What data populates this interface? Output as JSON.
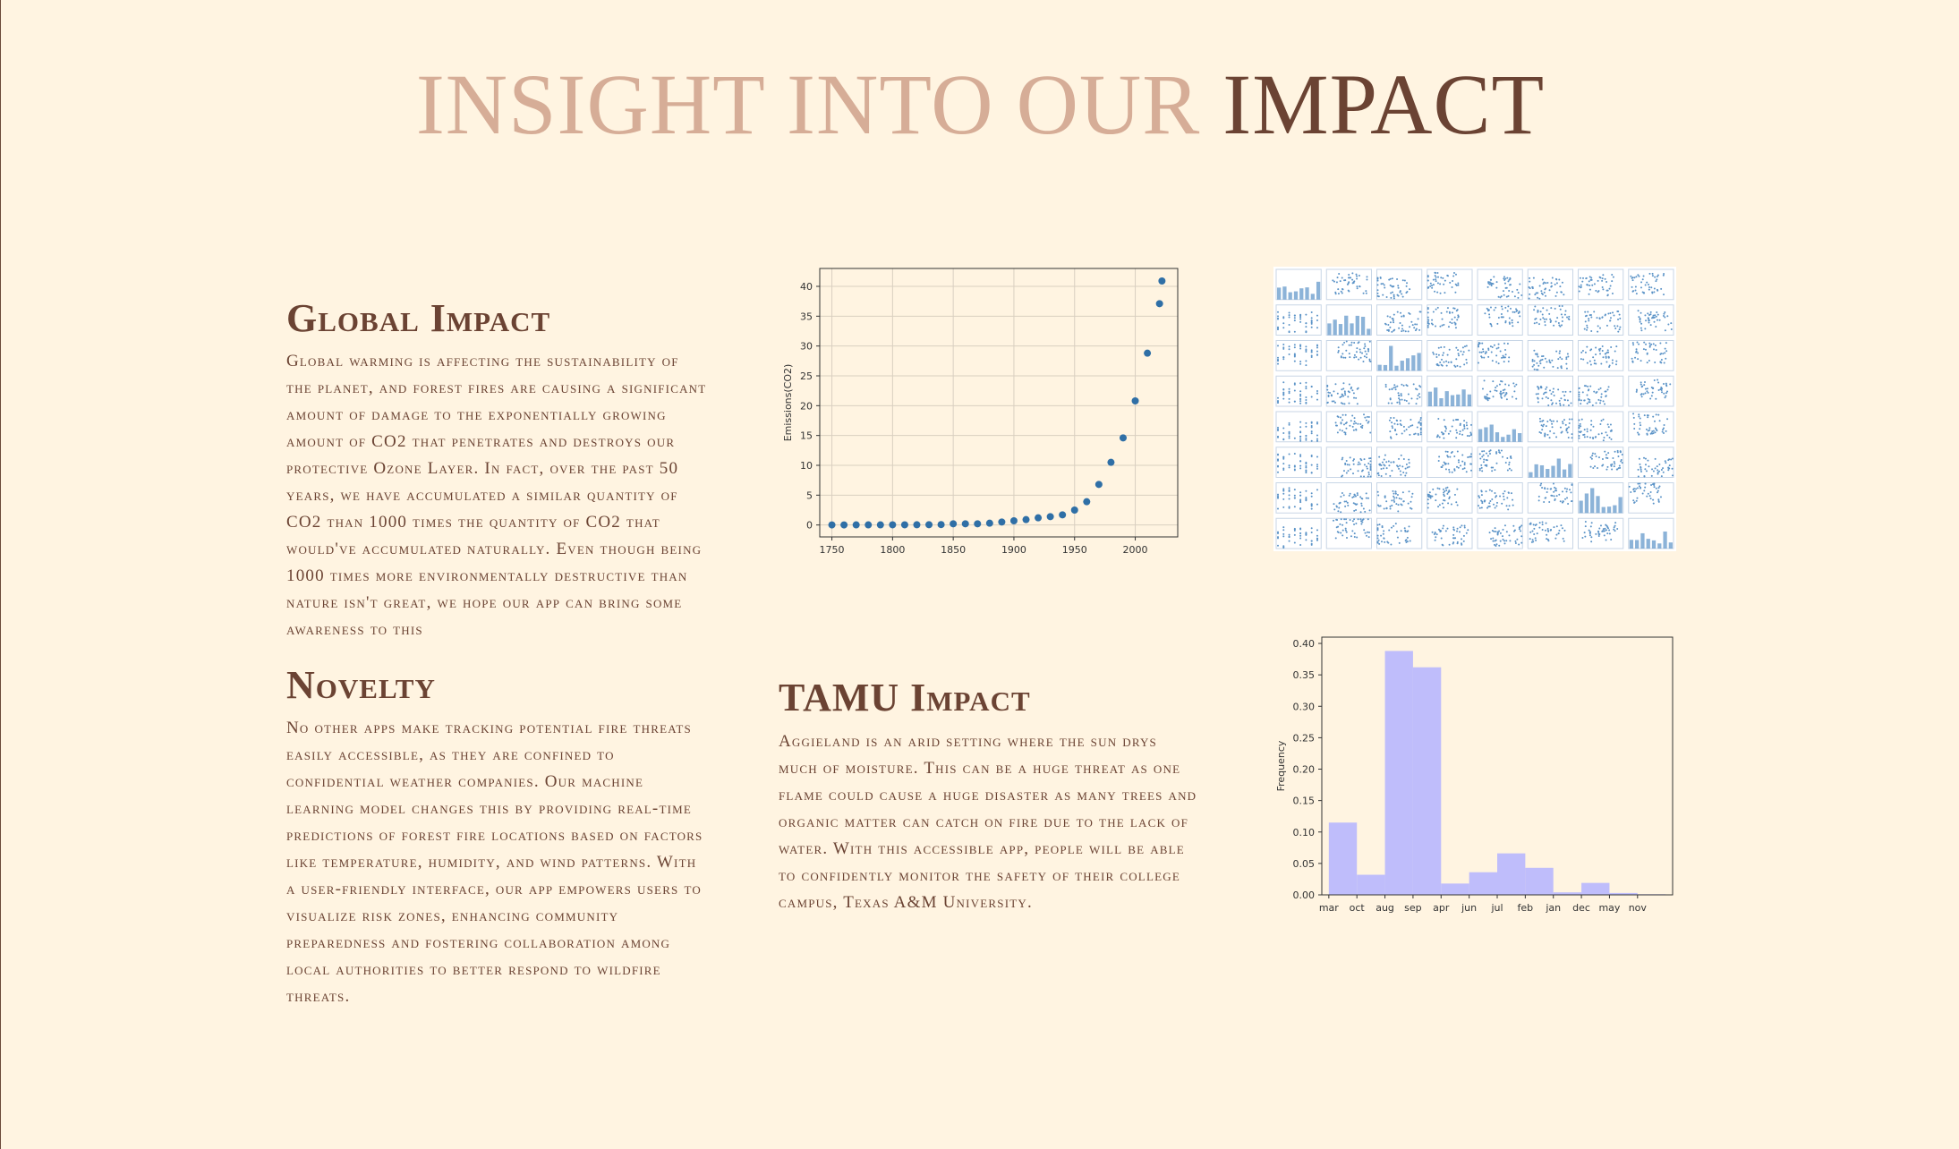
{
  "header": {
    "title_light": "INSIGHT INTO OUR",
    "title_dark": "IMPACT"
  },
  "sections": {
    "global": {
      "heading": "Global Impact",
      "body": "Global warming is affecting the sustainability of the planet, and forest fires are causing a significant amount of damage to the exponentially growing amount of CO2 that penetrates and destroys our protective Ozone Layer. In fact, over the past 50 years, we have accumulated a similar quantity of CO2 than 1000 times the quantity of CO2 that would've accumulated naturally. Even though being 1000 times more environmentally destructive than nature isn't great, we hope our app can bring some awareness to this"
    },
    "novelty": {
      "heading": "Novelty",
      "body": "No other apps make tracking potential fire threats easily accessible, as they are confined to confidential weather companies. Our machine learning model changes this by providing real-time predictions of forest fire locations based on factors like temperature, humidity, and wind patterns. With a user-friendly interface, our app empowers users to visualize risk zones, enhancing community preparedness and fostering collaboration among local authorities to better respond to wildfire threats."
    },
    "tamu": {
      "heading": "TAMU Impact",
      "body": "Aggieland is an arid setting where the sun drys much of moisture. This can be a huge threat as one flame could cause a huge disaster as many trees and organic matter can catch on fire due to the lack of water. With this accessible app, people will be able to confidently monitor the safety of their college campus, Texas A&M University."
    }
  },
  "chart_data": [
    {
      "type": "scatter",
      "title": "",
      "xlabel": "",
      "ylabel": "Emissions(CO2)",
      "xlim": [
        1740,
        2035
      ],
      "ylim": [
        -2,
        43
      ],
      "xticks": [
        1750,
        1800,
        1850,
        1900,
        1950,
        2000
      ],
      "yticks": [
        0,
        5,
        10,
        15,
        20,
        25,
        30,
        35,
        40
      ],
      "grid": true,
      "color": "#2f6fa6",
      "x": [
        1750,
        1760,
        1770,
        1780,
        1790,
        1800,
        1810,
        1820,
        1830,
        1840,
        1850,
        1860,
        1870,
        1880,
        1890,
        1900,
        1910,
        1920,
        1930,
        1940,
        1950,
        1960,
        1970,
        1980,
        1990,
        2000,
        2010,
        2020,
        2022
      ],
      "y": [
        0.01,
        0.01,
        0.02,
        0.02,
        0.02,
        0.03,
        0.03,
        0.04,
        0.05,
        0.07,
        0.2,
        0.2,
        0.2,
        0.3,
        0.5,
        0.7,
        0.9,
        1.2,
        1.4,
        1.7,
        2.5,
        3.9,
        6.8,
        10.5,
        14.6,
        20.8,
        28.8,
        37.1,
        40.9
      ]
    },
    {
      "type": "scatter-matrix",
      "title": "",
      "grid_size": 8,
      "color": "#5b93c7"
    },
    {
      "type": "bar",
      "title": "",
      "xlabel": "",
      "ylabel": "Frequency",
      "ylim": [
        0,
        0.41
      ],
      "yticks": [
        "0.00",
        "0.05",
        "0.10",
        "0.15",
        "0.20",
        "0.25",
        "0.30",
        "0.35",
        "0.40"
      ],
      "grid": false,
      "color": "#bfbdfb",
      "categories": [
        "mar",
        "oct",
        "aug",
        "sep",
        "apr",
        "jun",
        "jul",
        "feb",
        "jan",
        "dec",
        "may",
        "nov"
      ],
      "values": [
        0.115,
        0.032,
        0.388,
        0.362,
        0.018,
        0.036,
        0.066,
        0.043,
        0.004,
        0.019,
        0.003,
        0.001
      ]
    }
  ]
}
